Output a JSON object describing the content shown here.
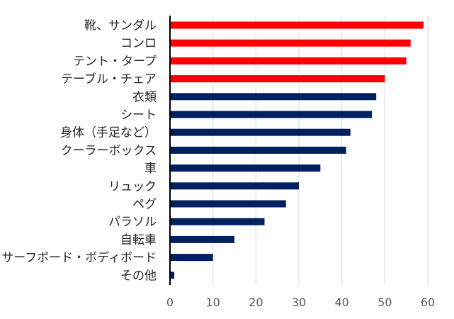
{
  "chart_data": {
    "type": "bar",
    "orientation": "horizontal",
    "categories": [
      "靴、サンダル",
      "コンロ",
      "テント・タープ",
      "テーブル・チェア",
      "衣類",
      "シート",
      "身体（手足など）",
      "クーラーボックス",
      "車",
      "リュック",
      "ペグ",
      "パラソル",
      "自転車",
      "サーフボード・ボディボード",
      "その他"
    ],
    "values": [
      59,
      56,
      55,
      50,
      48,
      47,
      42,
      41,
      35,
      30,
      27,
      22,
      15,
      10,
      1
    ],
    "highlight": [
      true,
      true,
      true,
      true,
      false,
      false,
      false,
      false,
      false,
      false,
      false,
      false,
      false,
      false,
      false
    ],
    "colors": {
      "highlight": "#ff0000",
      "normal": "#002060"
    },
    "xlim": [
      0,
      60
    ],
    "xticks": [
      0,
      10,
      20,
      30,
      40,
      50,
      60
    ],
    "grid": true,
    "title": "",
    "xlabel": "",
    "ylabel": ""
  }
}
